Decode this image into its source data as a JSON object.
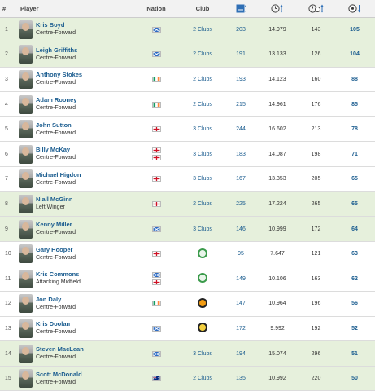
{
  "header": {
    "rank": "#",
    "player": "Player",
    "nation": "Nation",
    "club": "Club",
    "apps_icon": "appearances-icon",
    "minutes_icon": "clock-icon",
    "mins_per_goal_icon": "clock-ball-icon",
    "goals_icon": "football-icon"
  },
  "flag_colors": {
    "scotland": "#2e6cc4",
    "ireland": [
      "#169b62",
      "#ffffff",
      "#ff883e"
    ],
    "england": [
      "#ffffff",
      "#ce1124"
    ],
    "australia": "#00247d"
  },
  "rows": [
    {
      "rank": "1",
      "name": "Kris Boyd",
      "position": "Centre-Forward",
      "nations": [
        "scotland"
      ],
      "club_type": "text",
      "club": "2 Clubs",
      "apps": "203",
      "minutes": "14.979",
      "min_per_goal": "143",
      "goals": "105",
      "highlight": true
    },
    {
      "rank": "2",
      "name": "Leigh Griffiths",
      "position": "Centre-Forward",
      "nations": [
        "scotland"
      ],
      "club_type": "text",
      "club": "2 Clubs",
      "apps": "191",
      "minutes": "13.133",
      "min_per_goal": "126",
      "goals": "104",
      "highlight": true
    },
    {
      "rank": "3",
      "name": "Anthony Stokes",
      "position": "Centre-Forward",
      "nations": [
        "ireland"
      ],
      "club_type": "text",
      "club": "2 Clubs",
      "apps": "193",
      "minutes": "14.123",
      "min_per_goal": "160",
      "goals": "88",
      "highlight": false
    },
    {
      "rank": "4",
      "name": "Adam Rooney",
      "position": "Centre-Forward",
      "nations": [
        "ireland"
      ],
      "club_type": "text",
      "club": "2 Clubs",
      "apps": "215",
      "minutes": "14.961",
      "min_per_goal": "176",
      "goals": "85",
      "highlight": false
    },
    {
      "rank": "5",
      "name": "John Sutton",
      "position": "Centre-Forward",
      "nations": [
        "england"
      ],
      "club_type": "text",
      "club": "3 Clubs",
      "apps": "244",
      "minutes": "16.602",
      "min_per_goal": "213",
      "goals": "78",
      "highlight": false
    },
    {
      "rank": "6",
      "name": "Billy McKay",
      "position": "Centre-Forward",
      "nations": [
        "england",
        "england"
      ],
      "club_type": "text",
      "club": "3 Clubs",
      "apps": "183",
      "minutes": "14.087",
      "min_per_goal": "198",
      "goals": "71",
      "highlight": false
    },
    {
      "rank": "7",
      "name": "Michael Higdon",
      "position": "Centre-Forward",
      "nations": [
        "england"
      ],
      "club_type": "text",
      "club": "3 Clubs",
      "apps": "167",
      "minutes": "13.353",
      "min_per_goal": "205",
      "goals": "65",
      "highlight": false
    },
    {
      "rank": "8",
      "name": "Niall McGinn",
      "position": "Left Winger",
      "nations": [
        "england"
      ],
      "club_type": "text",
      "club": "2 Clubs",
      "apps": "225",
      "minutes": "17.224",
      "min_per_goal": "265",
      "goals": "65",
      "highlight": true
    },
    {
      "rank": "9",
      "name": "Kenny Miller",
      "position": "Centre-Forward",
      "nations": [
        "scotland"
      ],
      "club_type": "text",
      "club": "3 Clubs",
      "apps": "146",
      "minutes": "10.999",
      "min_per_goal": "172",
      "goals": "64",
      "highlight": true
    },
    {
      "rank": "10",
      "name": "Gary Hooper",
      "position": "Centre-Forward",
      "nations": [
        "england"
      ],
      "club_type": "crest",
      "crest": "celtic-crest-icon",
      "apps": "95",
      "minutes": "7.647",
      "min_per_goal": "121",
      "goals": "63",
      "highlight": false
    },
    {
      "rank": "11",
      "name": "Kris Commons",
      "position": "Attacking Midfield",
      "nations": [
        "scotland",
        "england"
      ],
      "club_type": "crest",
      "crest": "celtic-crest-icon",
      "apps": "149",
      "minutes": "10.106",
      "min_per_goal": "163",
      "goals": "62",
      "highlight": false
    },
    {
      "rank": "12",
      "name": "Jon Daly",
      "position": "Centre-Forward",
      "nations": [
        "ireland"
      ],
      "club_type": "crest",
      "crest": "dundee-united-crest-icon",
      "apps": "147",
      "minutes": "10.964",
      "min_per_goal": "196",
      "goals": "56",
      "highlight": false
    },
    {
      "rank": "13",
      "name": "Kris Doolan",
      "position": "Centre-Forward",
      "nations": [
        "scotland"
      ],
      "club_type": "crest",
      "crest": "partick-thistle-crest-icon",
      "apps": "172",
      "minutes": "9.992",
      "min_per_goal": "192",
      "goals": "52",
      "highlight": false
    },
    {
      "rank": "14",
      "name": "Steven MacLean",
      "position": "Centre-Forward",
      "nations": [
        "scotland"
      ],
      "club_type": "text",
      "club": "3 Clubs",
      "apps": "194",
      "minutes": "15.074",
      "min_per_goal": "296",
      "goals": "51",
      "highlight": true
    },
    {
      "rank": "15",
      "name": "Scott McDonald",
      "position": "Centre-Forward",
      "nations": [
        "australia"
      ],
      "club_type": "text",
      "club": "2 Clubs",
      "apps": "135",
      "minutes": "10.992",
      "min_per_goal": "220",
      "goals": "50",
      "highlight": true
    }
  ]
}
